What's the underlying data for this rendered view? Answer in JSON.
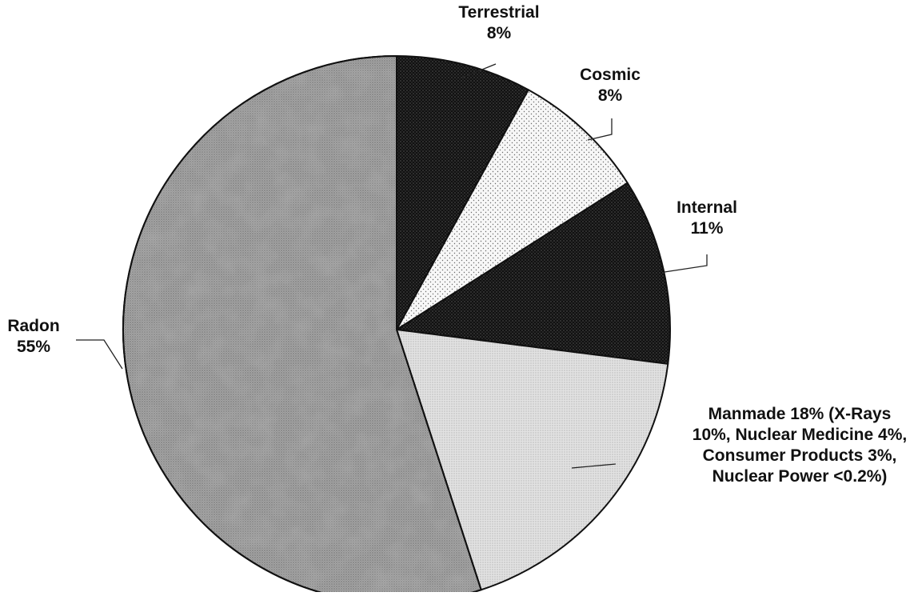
{
  "chart_data": {
    "type": "pie",
    "title": "",
    "slices": [
      {
        "id": "terrestrial",
        "value": 8,
        "label_lines": [
          "Terrestrial",
          "8%"
        ],
        "fill": "#1a1a1a",
        "fill_style": "dense-dots-dark"
      },
      {
        "id": "cosmic",
        "value": 8,
        "label_lines": [
          "Cosmic",
          "8%"
        ],
        "fill": "#f4f4f4",
        "fill_style": "sparse-dots-light"
      },
      {
        "id": "internal",
        "value": 11,
        "label_lines": [
          "Internal",
          "11%"
        ],
        "fill": "#2a2a2a",
        "fill_style": "dense-dots-dark"
      },
      {
        "id": "manmade",
        "value": 18,
        "label_lines": [
          "Manmade 18% (X-Rays",
          "10%, Nuclear Medicine 4%,",
          "Consumer Products 3%,",
          "Nuclear Power <0.2%)"
        ],
        "fill": "#cfcfcf",
        "fill_style": "fine-dots-light"
      },
      {
        "id": "radon",
        "value": 55,
        "label_lines": [
          "Radon",
          "55%"
        ],
        "fill": "#9a9a9a",
        "fill_style": "mottled-gray"
      }
    ],
    "start_angle": "12 o'clock",
    "direction": "clockwise",
    "legend": "none"
  }
}
